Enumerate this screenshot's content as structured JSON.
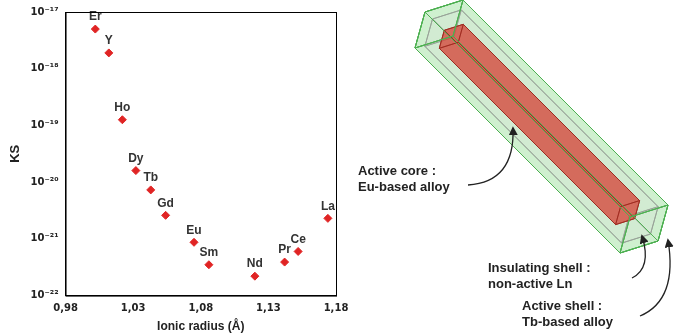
{
  "chart_data": {
    "type": "scatter",
    "xlabel": "Ionic radius (Å)",
    "ylabel": "KS",
    "labels": [
      "Er",
      "Y",
      "Ho",
      "Dy",
      "Tb",
      "Gd",
      "Eu",
      "Sm",
      "Nd",
      "Pr",
      "Ce",
      "La"
    ],
    "x": [
      1.002,
      1.012,
      1.022,
      1.032,
      1.043,
      1.054,
      1.075,
      1.086,
      1.12,
      1.142,
      1.152,
      1.174
    ],
    "values": [
      5e-18,
      1.9e-18,
      1.26e-19,
      1.6e-20,
      7.3e-21,
      2.6e-21,
      8.7e-22,
      3.5e-22,
      2.2e-22,
      3.9e-22,
      6e-22,
      2.3e-21
    ],
    "color": "#e02424",
    "marker": "diamond",
    "log": "y",
    "grid": false,
    "xlim": [
      0.98,
      1.18
    ],
    "xticks": [
      {
        "value": 0.98,
        "label": "0,98"
      },
      {
        "value": 1.03,
        "label": "1,03"
      },
      {
        "value": 1.08,
        "label": "1,08"
      },
      {
        "value": 1.13,
        "label": "1,13"
      },
      {
        "value": 1.18,
        "label": "1,18"
      }
    ],
    "ylim": [
      1e-22,
      1e-17
    ],
    "yticks": [
      {
        "value": 1e-22,
        "label": "10⁻²²"
      },
      {
        "value": 1e-21,
        "label": "10⁻²¹"
      },
      {
        "value": 1e-20,
        "label": "10⁻²⁰"
      },
      {
        "value": 1e-19,
        "label": "10⁻¹⁹"
      },
      {
        "value": 1e-18,
        "label": "10⁻¹⁸"
      },
      {
        "value": 1e-17,
        "label": "10⁻¹⁷"
      }
    ]
  },
  "diagram": {
    "labels": [
      {
        "title": "Active core :",
        "text": "Eu-based alloy"
      },
      {
        "title": "Insulating shell :",
        "text": "non-active Ln"
      },
      {
        "title": "Active shell :",
        "text": "Tb-based alloy"
      }
    ]
  }
}
